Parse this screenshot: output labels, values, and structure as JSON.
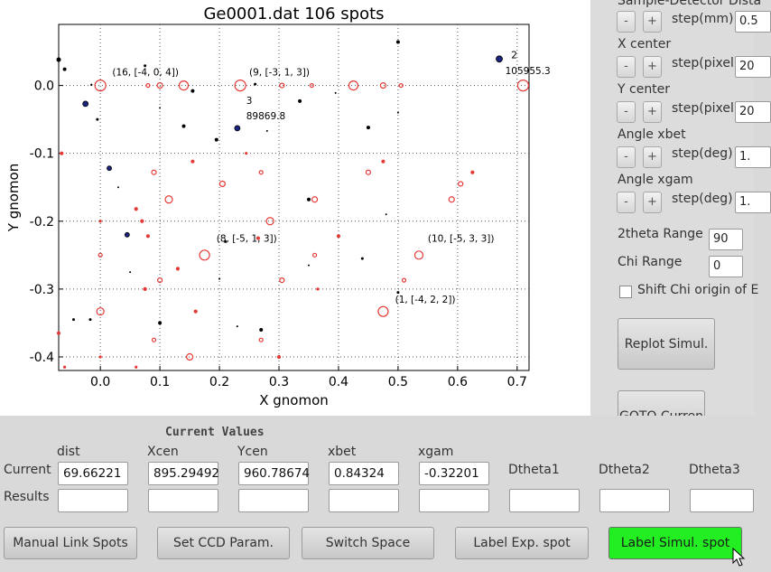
{
  "plot": {
    "title": "Ge0001.dat 106 spots",
    "xlabel": "X gnomon",
    "ylabel": "Y gnomon",
    "xticks": [
      "0.0",
      "0.1",
      "0.2",
      "0.3",
      "0.4",
      "0.5",
      "0.6",
      "0.7"
    ],
    "yticks": [
      "0.0",
      "-0.1",
      "-0.2",
      "-0.3",
      "-0.4"
    ],
    "xlim": [
      -0.07,
      0.72
    ],
    "ylim": [
      -0.42,
      0.09
    ],
    "grid": true,
    "annotations": [
      {
        "text": "(16, [-4, 0, 4])",
        "x": 0.02,
        "y": 0.015
      },
      {
        "text": "(9, [-3, 1, 3])",
        "x": 0.25,
        "y": 0.015
      },
      {
        "text": "2",
        "x": 0.69,
        "y": 0.04
      },
      {
        "text": "105955.3",
        "x": 0.68,
        "y": 0.017
      },
      {
        "text": "3",
        "x": 0.245,
        "y": -0.027
      },
      {
        "text": "89869.8",
        "x": 0.245,
        "y": -0.05
      },
      {
        "text": "(8, [-5, 1, 3])",
        "x": 0.195,
        "y": -0.23
      },
      {
        "text": "(10, [-5, 3, 3])",
        "x": 0.55,
        "y": -0.23
      },
      {
        "text": "(1, [-4, 2, 2])",
        "x": 0.495,
        "y": -0.32
      }
    ],
    "colors": {
      "experimental": "#000000",
      "highlight": "#1a237e",
      "simulated": "#e53935"
    },
    "exp_spots": [
      [
        -0.07,
        0.038,
        2.5
      ],
      [
        -0.06,
        0.024,
        2
      ],
      [
        -0.015,
        0.001,
        1.2
      ],
      [
        0.075,
        0.029,
        1.5
      ],
      [
        0.155,
        -0.008,
        2
      ],
      [
        0.26,
        0.002,
        1.5
      ],
      [
        0.335,
        -0.023,
        2
      ],
      [
        0.395,
        -0.011,
        1
      ],
      [
        0.5,
        0.064,
        2
      ],
      [
        0.5,
        -0.04,
        1
      ],
      [
        0.1,
        -0.033,
        1
      ],
      [
        -0.005,
        -0.05,
        1.5
      ],
      [
        0.14,
        -0.06,
        2
      ],
      [
        0.195,
        -0.08,
        2
      ],
      [
        0.28,
        -0.067,
        1
      ],
      [
        0.45,
        -0.062,
        2
      ],
      [
        0.35,
        -0.168,
        2
      ],
      [
        0.03,
        -0.15,
        1
      ],
      [
        0.21,
        -0.23,
        1.5
      ],
      [
        0.44,
        -0.255,
        1.5
      ],
      [
        0.35,
        -0.265,
        1
      ],
      [
        -0.045,
        -0.345,
        1.5
      ],
      [
        -0.017,
        -0.345,
        1.5
      ],
      [
        0.1,
        -0.35,
        2
      ],
      [
        0.27,
        -0.36,
        2
      ],
      [
        0.5,
        -0.305,
        1.5
      ],
      [
        0.05,
        -0.275,
        1
      ],
      [
        0.2,
        -0.285,
        1
      ],
      [
        0.23,
        -0.355,
        1
      ],
      [
        0.48,
        -0.19,
        1
      ]
    ],
    "highlight_spots": [
      [
        0.67,
        0.039,
        3.5
      ],
      [
        -0.025,
        -0.027,
        3
      ],
      [
        0.23,
        -0.063,
        3
      ],
      [
        0.015,
        -0.122,
        2.5
      ],
      [
        0.045,
        -0.22,
        2.5
      ]
    ],
    "sim_spots": [
      [
        0.0,
        0.0,
        6
      ],
      [
        0.08,
        0.0,
        2
      ],
      [
        0.1,
        0.0,
        3
      ],
      [
        0.14,
        0.0,
        5
      ],
      [
        0.235,
        0.0,
        6
      ],
      [
        0.305,
        0.0,
        2.5
      ],
      [
        0.355,
        0.0,
        2
      ],
      [
        0.425,
        0.0,
        5
      ],
      [
        0.475,
        0.0,
        3
      ],
      [
        0.505,
        0.0,
        2
      ],
      [
        0.71,
        0.0,
        6
      ],
      [
        0.09,
        -0.128,
        2.5
      ],
      [
        0.155,
        -0.112,
        1.5
      ],
      [
        0.205,
        -0.145,
        3
      ],
      [
        0.27,
        -0.128,
        2
      ],
      [
        0.45,
        -0.128,
        2.5
      ],
      [
        0.475,
        -0.112,
        1.5
      ],
      [
        0.605,
        -0.145,
        2.5
      ],
      [
        0.625,
        -0.128,
        1.5
      ],
      [
        0.115,
        -0.168,
        4
      ],
      [
        0.36,
        -0.168,
        3
      ],
      [
        0.59,
        -0.168,
        3
      ],
      [
        0.285,
        -0.2,
        4
      ],
      [
        0.0,
        -0.2,
        1
      ],
      [
        0.07,
        -0.2,
        1.5
      ],
      [
        0.0,
        -0.25,
        2
      ],
      [
        0.08,
        -0.222,
        1.5
      ],
      [
        0.175,
        -0.25,
        5.5
      ],
      [
        0.265,
        -0.225,
        1.5
      ],
      [
        0.36,
        -0.25,
        2
      ],
      [
        0.4,
        -0.222,
        1.5
      ],
      [
        0.535,
        -0.25,
        4.5
      ],
      [
        0.1,
        -0.287,
        2.5
      ],
      [
        0.305,
        -0.287,
        2.5
      ],
      [
        0.51,
        -0.287,
        2
      ],
      [
        0.0,
        -0.333,
        4
      ],
      [
        0.16,
        -0.333,
        1.5
      ],
      [
        0.475,
        -0.333,
        5.5
      ],
      [
        0.09,
        -0.375,
        2
      ],
      [
        0.27,
        -0.375,
        2
      ],
      [
        0.15,
        -0.4,
        3.5
      ],
      [
        0.0,
        -0.4,
        1
      ],
      [
        0.3,
        -0.4,
        1.5
      ],
      [
        0.365,
        -0.3,
        1
      ],
      [
        0.075,
        -0.3,
        1.5
      ],
      [
        -0.065,
        -0.1,
        1.5
      ],
      [
        -0.07,
        -0.365,
        1.5
      ],
      [
        0.06,
        -0.182,
        1.5
      ],
      [
        0.13,
        -0.27,
        1.5
      ],
      [
        0.245,
        -0.1,
        1
      ],
      [
        0.06,
        -0.415,
        1
      ],
      [
        -0.06,
        -0.415,
        1
      ]
    ]
  },
  "right_panel": {
    "sample_detector_label": "Sample-Detector Dista",
    "step_mm_label": "step(mm)",
    "step_mm_value": "0.5",
    "x_center_label": "X center",
    "y_center_label": "Y center",
    "step_pixel_label": "step(pixel)",
    "step_pixel_value_x": "20",
    "step_pixel_value_y": "20",
    "angle_xbet_label": "Angle xbet",
    "angle_xgam_label": "Angle xgam",
    "step_deg_label": "step(deg)",
    "step_deg_value": "1.",
    "minus": "-",
    "plus": "+",
    "two_theta_label": "2theta Range",
    "two_theta_value": "90",
    "chi_label": "Chi Range",
    "chi_value": "0",
    "shift_chi_label": "Shift Chi origin of E",
    "replot_button": "Replot Simul.",
    "goto_button": "GOTO Curren"
  },
  "bottom": {
    "title": "Current Values",
    "columns": [
      "dist",
      "Xcen",
      "Ycen",
      "xbet",
      "xgam",
      "Dtheta1",
      "Dtheta2",
      "Dtheta3"
    ],
    "row_current": "Current",
    "row_results": "Results",
    "current_values": [
      "69.66221",
      "895.29492",
      "960.78674",
      "0.84324",
      "-0.32201"
    ],
    "buttons": [
      "Manual Link Spots",
      "Set CCD Param.",
      "Switch Space",
      "Label Exp. spot",
      "Label Simul. spot"
    ]
  }
}
